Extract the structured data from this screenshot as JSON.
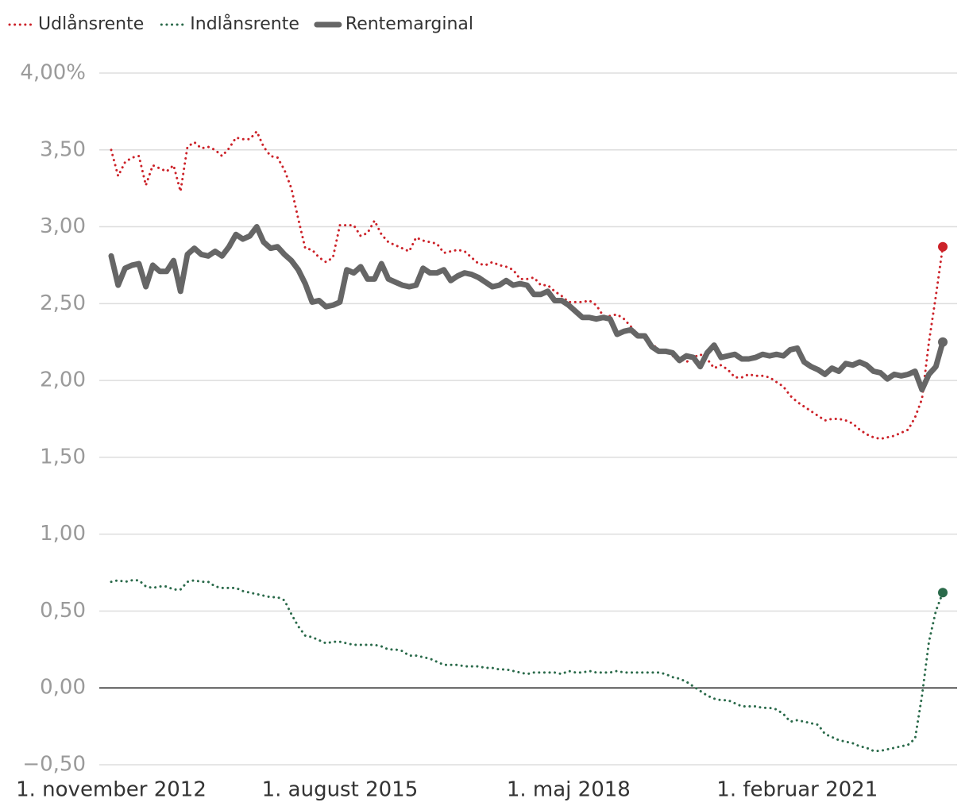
{
  "chart_data": {
    "type": "line",
    "legend": "top",
    "grid": true,
    "zero_line": true,
    "categories": [
      "1. november 2012",
      null,
      null,
      null,
      null,
      null,
      null,
      null,
      null,
      null,
      null,
      null,
      null,
      null,
      null,
      null,
      null,
      null,
      null,
      null,
      null,
      null,
      null,
      null,
      null,
      null,
      null,
      null,
      null,
      null,
      null,
      null,
      null,
      "1. august 2015",
      null,
      null,
      null,
      null,
      null,
      null,
      null,
      null,
      null,
      null,
      null,
      null,
      null,
      null,
      null,
      null,
      null,
      null,
      null,
      null,
      null,
      null,
      null,
      null,
      null,
      null,
      null,
      null,
      null,
      null,
      null,
      null,
      "1. maj 2018",
      null,
      null,
      null,
      null,
      null,
      null,
      null,
      null,
      null,
      null,
      null,
      null,
      null,
      null,
      null,
      null,
      null,
      null,
      null,
      null,
      null,
      null,
      null,
      null,
      null,
      null,
      null,
      null,
      null,
      null,
      null,
      null,
      "1. februar 2021",
      null,
      null,
      null,
      null,
      null,
      null,
      null,
      null,
      null,
      null,
      null,
      null,
      null,
      null,
      null,
      null,
      null,
      null,
      null,
      null,
      null
    ],
    "ylim": [
      -0.5,
      4.0
    ],
    "yticks": [
      {
        "value": -0.5,
        "label": "−0,50"
      },
      {
        "value": 0,
        "label": "0,00"
      },
      {
        "value": 0.5,
        "label": "0,50"
      },
      {
        "value": 1.0,
        "label": "1,00"
      },
      {
        "value": 1.5,
        "label": "1,50"
      },
      {
        "value": 2.0,
        "label": "2,00"
      },
      {
        "value": 2.5,
        "label": "2,50"
      },
      {
        "value": 3.0,
        "label": "3,00"
      },
      {
        "value": 3.5,
        "label": "3,50"
      },
      {
        "value": 4.0,
        "label": "4,00%"
      }
    ],
    "series": [
      {
        "name": "Udlånsrente",
        "color": "#cc2229",
        "style": "dotted",
        "values": [
          3.5,
          3.33,
          3.42,
          3.45,
          3.46,
          3.27,
          3.4,
          3.38,
          3.36,
          3.4,
          3.23,
          3.52,
          3.55,
          3.51,
          3.52,
          3.5,
          3.46,
          3.51,
          3.58,
          3.57,
          3.57,
          3.62,
          3.52,
          3.46,
          3.45,
          3.37,
          3.25,
          3.05,
          2.86,
          2.85,
          2.8,
          2.77,
          2.8,
          3.01,
          3.01,
          3.01,
          2.94,
          2.96,
          3.04,
          2.95,
          2.9,
          2.88,
          2.86,
          2.84,
          2.93,
          2.91,
          2.9,
          2.89,
          2.83,
          2.84,
          2.85,
          2.84,
          2.8,
          2.76,
          2.75,
          2.77,
          2.75,
          2.74,
          2.72,
          2.66,
          2.66,
          2.67,
          2.62,
          2.62,
          2.58,
          2.55,
          2.51,
          2.51,
          2.51,
          2.52,
          2.49,
          2.42,
          2.42,
          2.43,
          2.4,
          2.35,
          2.3,
          2.28,
          2.24,
          2.2,
          2.19,
          2.16,
          2.14,
          2.12,
          2.15,
          2.17,
          2.14,
          2.08,
          2.1,
          2.07,
          2.02,
          2.02,
          2.04,
          2.03,
          2.03,
          2.02,
          1.99,
          1.96,
          1.9,
          1.86,
          1.83,
          1.8,
          1.77,
          1.74,
          1.75,
          1.75,
          1.74,
          1.72,
          1.68,
          1.65,
          1.63,
          1.62,
          1.63,
          1.64,
          1.66,
          1.68,
          1.76,
          1.88,
          2.25,
          2.55,
          2.87
        ]
      },
      {
        "name": "Indlånsrente",
        "color": "#2a6a4a",
        "style": "dotted",
        "values": [
          0.69,
          0.7,
          0.69,
          0.7,
          0.7,
          0.66,
          0.65,
          0.66,
          0.66,
          0.64,
          0.64,
          0.69,
          0.7,
          0.69,
          0.69,
          0.66,
          0.65,
          0.65,
          0.65,
          0.63,
          0.62,
          0.61,
          0.6,
          0.59,
          0.59,
          0.57,
          0.48,
          0.4,
          0.34,
          0.33,
          0.31,
          0.29,
          0.3,
          0.3,
          0.29,
          0.28,
          0.28,
          0.28,
          0.28,
          0.27,
          0.25,
          0.25,
          0.24,
          0.21,
          0.21,
          0.2,
          0.19,
          0.17,
          0.15,
          0.15,
          0.15,
          0.14,
          0.14,
          0.14,
          0.13,
          0.13,
          0.12,
          0.12,
          0.11,
          0.1,
          0.09,
          0.1,
          0.1,
          0.1,
          0.1,
          0.09,
          0.11,
          0.1,
          0.1,
          0.11,
          0.1,
          0.1,
          0.1,
          0.11,
          0.1,
          0.1,
          0.1,
          0.1,
          0.1,
          0.1,
          0.09,
          0.07,
          0.06,
          0.04,
          0.01,
          -0.02,
          -0.05,
          -0.07,
          -0.08,
          -0.08,
          -0.1,
          -0.12,
          -0.12,
          -0.12,
          -0.13,
          -0.13,
          -0.14,
          -0.17,
          -0.22,
          -0.21,
          -0.22,
          -0.23,
          -0.24,
          -0.3,
          -0.32,
          -0.34,
          -0.35,
          -0.36,
          -0.38,
          -0.39,
          -0.41,
          -0.41,
          -0.4,
          -0.39,
          -0.38,
          -0.37,
          -0.33,
          -0.05,
          0.3,
          0.5,
          0.62
        ]
      },
      {
        "name": "Rentemarginal",
        "color": "#666666",
        "style": "solid",
        "values": [
          2.81,
          2.62,
          2.73,
          2.75,
          2.76,
          2.61,
          2.75,
          2.71,
          2.71,
          2.78,
          2.58,
          2.82,
          2.86,
          2.82,
          2.81,
          2.84,
          2.81,
          2.87,
          2.95,
          2.92,
          2.94,
          3.0,
          2.9,
          2.86,
          2.87,
          2.82,
          2.78,
          2.72,
          2.63,
          2.51,
          2.52,
          2.48,
          2.49,
          2.51,
          2.72,
          2.7,
          2.74,
          2.66,
          2.66,
          2.76,
          2.66,
          2.64,
          2.62,
          2.61,
          2.62,
          2.73,
          2.7,
          2.7,
          2.72,
          2.65,
          2.68,
          2.7,
          2.69,
          2.67,
          2.64,
          2.61,
          2.62,
          2.65,
          2.62,
          2.63,
          2.62,
          2.56,
          2.56,
          2.58,
          2.52,
          2.52,
          2.49,
          2.45,
          2.41,
          2.41,
          2.4,
          2.41,
          2.4,
          2.3,
          2.32,
          2.33,
          2.29,
          2.29,
          2.22,
          2.19,
          2.19,
          2.18,
          2.13,
          2.16,
          2.15,
          2.09,
          2.18,
          2.23,
          2.15,
          2.16,
          2.17,
          2.14,
          2.14,
          2.15,
          2.17,
          2.16,
          2.17,
          2.16,
          2.2,
          2.21,
          2.12,
          2.09,
          2.07,
          2.04,
          2.08,
          2.06,
          2.11,
          2.1,
          2.12,
          2.1,
          2.06,
          2.05,
          2.01,
          2.04,
          2.03,
          2.04,
          2.06,
          1.94,
          2.04,
          2.09,
          2.25
        ]
      }
    ]
  }
}
